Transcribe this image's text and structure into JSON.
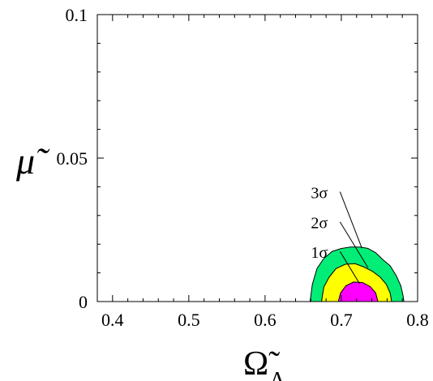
{
  "chart_data": {
    "type": "contour",
    "xlabel": "Ω̃",
    "xlabel_subscript": "Λ",
    "ylabel": "μ̃",
    "xlim": [
      0.38,
      0.8
    ],
    "ylim": [
      0,
      0.1
    ],
    "x_ticks": [
      {
        "value": 0.4,
        "label": "0.4"
      },
      {
        "value": 0.5,
        "label": "0.5"
      },
      {
        "value": 0.6,
        "label": "0.6"
      },
      {
        "value": 0.7,
        "label": "0.7"
      },
      {
        "value": 0.8,
        "label": "0.8"
      }
    ],
    "y_ticks": [
      {
        "value": 0,
        "label": "0"
      },
      {
        "value": 0.05,
        "label": "0.05"
      },
      {
        "value": 0.1,
        "label": "0.1"
      }
    ],
    "grid": false,
    "contours": [
      {
        "label": "3σ",
        "color": "#00ee77",
        "outline": [
          [
            0.659,
            0
          ],
          [
            0.662,
            0.006
          ],
          [
            0.668,
            0.0115
          ],
          [
            0.677,
            0.015
          ],
          [
            0.688,
            0.0175
          ],
          [
            0.7,
            0.0185
          ],
          [
            0.712,
            0.019
          ],
          [
            0.725,
            0.019
          ],
          [
            0.735,
            0.0185
          ],
          [
            0.745,
            0.017
          ],
          [
            0.755,
            0.0145
          ],
          [
            0.764,
            0.0125
          ],
          [
            0.772,
            0.009
          ],
          [
            0.778,
            0.0055
          ],
          [
            0.781,
            0.002
          ],
          [
            0.782,
            0
          ]
        ],
        "annotation_point": [
          0.727,
          0.0186
        ],
        "label_position": [
          0.66,
          0.036
        ]
      },
      {
        "label": "2σ",
        "color": "#ffff00",
        "outline": [
          [
            0.674,
            0
          ],
          [
            0.677,
            0.005
          ],
          [
            0.684,
            0.0085
          ],
          [
            0.693,
            0.0115
          ],
          [
            0.705,
            0.013
          ],
          [
            0.718,
            0.0132
          ],
          [
            0.73,
            0.012
          ],
          [
            0.741,
            0.0105
          ],
          [
            0.751,
            0.0085
          ],
          [
            0.759,
            0.006
          ],
          [
            0.764,
            0.003
          ],
          [
            0.766,
            0
          ]
        ],
        "annotation_point": [
          0.735,
          0.0118
        ],
        "label_position": [
          0.66,
          0.0255
        ]
      },
      {
        "label": "1σ",
        "color": "#ff00ff",
        "outline": [
          [
            0.696,
            0
          ],
          [
            0.699,
            0.003
          ],
          [
            0.706,
            0.0055
          ],
          [
            0.716,
            0.0068
          ],
          [
            0.728,
            0.0066
          ],
          [
            0.738,
            0.0052
          ],
          [
            0.745,
            0.003
          ],
          [
            0.748,
            0
          ]
        ],
        "annotation_point": [
          0.724,
          0.0062
        ],
        "label_position": [
          0.66,
          0.0152
        ]
      }
    ]
  }
}
